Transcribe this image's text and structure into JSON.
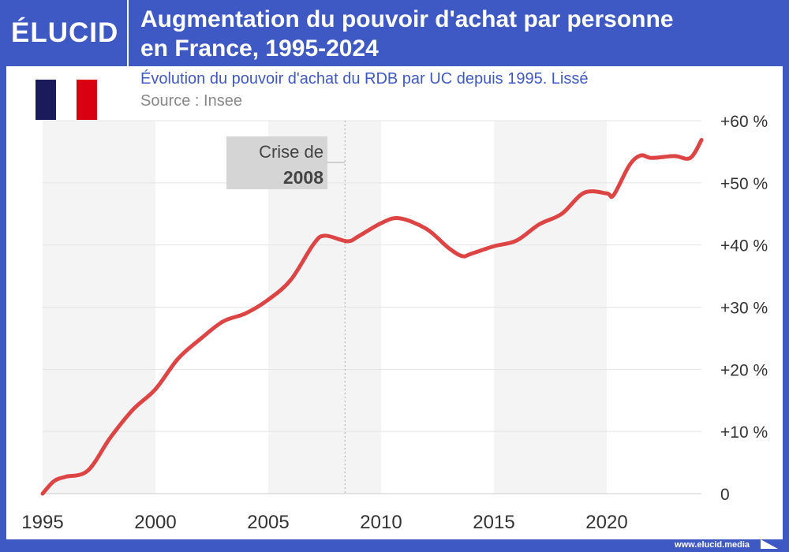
{
  "header": {
    "logo": "ÉLUCID",
    "title_line1": "Augmentation du pouvoir d'achat par personne",
    "title_line2": "en France, 1995-2024"
  },
  "subtitle": "Évolution du pouvoir d'achat du RDB par UC depuis 1995. Lissé",
  "source": "Source : Insee",
  "footer": "www.elucid.media",
  "colors": {
    "brand": "#3f59c4",
    "line": "#dd4545",
    "flag": [
      "#1b1a5a",
      "#ffffff",
      "#d90012"
    ]
  },
  "chart_data": {
    "type": "line",
    "title": "Augmentation du pouvoir d'achat par personne en France, 1995-2024",
    "xlabel": "",
    "ylabel": "",
    "xlim": [
      1995,
      2024.2
    ],
    "ylim": [
      0,
      60
    ],
    "xticks": [
      1995,
      2000,
      2005,
      2010,
      2015,
      2020
    ],
    "yticks": [
      {
        "v": 0,
        "label": "0"
      },
      {
        "v": 10,
        "label": "+10 %"
      },
      {
        "v": 20,
        "label": "+20 %"
      },
      {
        "v": 30,
        "label": "+30 %"
      },
      {
        "v": 40,
        "label": "+40 %"
      },
      {
        "v": 50,
        "label": "+50 %"
      },
      {
        "v": 60,
        "label": "+60 %"
      }
    ],
    "series": [
      {
        "name": "Pouvoir d'achat du RDB par UC",
        "x": [
          1995,
          1995.5,
          1996,
          1997,
          1998,
          1999,
          2000,
          2001,
          2002,
          2003,
          2004,
          2005,
          2006,
          2007,
          2007.5,
          2008.5,
          2009,
          2010,
          2010.8,
          2012,
          2013,
          2013.6,
          2014,
          2015,
          2016,
          2017,
          2018,
          2019,
          2020,
          2020.3,
          2021,
          2021.5,
          2022,
          2023,
          2023.7,
          2024.2
        ],
        "y": [
          0,
          2,
          2.7,
          3.7,
          9,
          13.5,
          16.8,
          21.7,
          24.9,
          27.7,
          29,
          31.2,
          34.4,
          40.1,
          41.5,
          40.6,
          41.4,
          43.5,
          44.3,
          42.6,
          39.5,
          38.2,
          38.6,
          39.8,
          40.7,
          43.3,
          45,
          48.4,
          48.3,
          48,
          52.8,
          54.4,
          54,
          54.3,
          54,
          56.9
        ]
      }
    ],
    "annotation": {
      "x": 2008.4,
      "line1": "Crise de",
      "line2": "2008"
    }
  }
}
